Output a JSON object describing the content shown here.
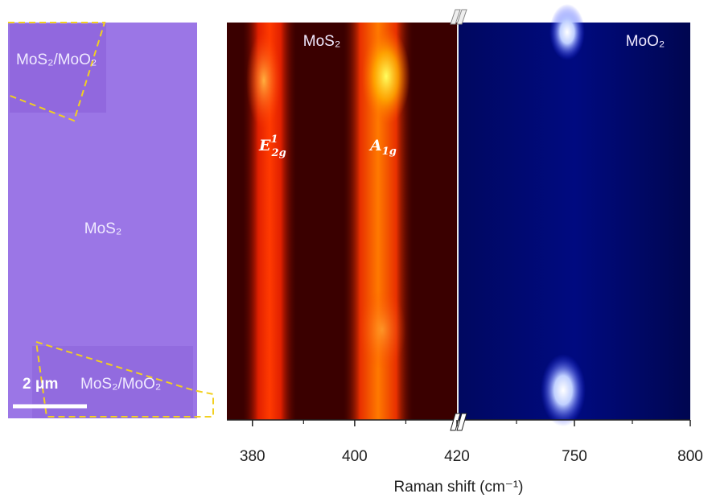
{
  "optical_image": {
    "labels": [
      "MoS₂/MoO₂",
      "MoS₂",
      "MoS₂/MoO₂"
    ],
    "scale_bar": "2 μm"
  },
  "raman_map": {
    "left_panel": {
      "label": "MoS₂",
      "xlim": [
        375,
        420
      ],
      "xticks": [
        380,
        400,
        420
      ],
      "minor_xticks": [
        390,
        410
      ],
      "peaks": [
        {
          "base": "E",
          "sub": "2g",
          "sup": "1"
        },
        {
          "base": "A",
          "sub": "1g"
        }
      ]
    },
    "right_panel": {
      "label": "MoO₂",
      "xlim": [
        700,
        800
      ],
      "xticks": [
        750,
        800
      ],
      "minor_xticks": [
        725,
        775
      ]
    },
    "x_label": "Raman shift (cm⁻¹)"
  }
}
